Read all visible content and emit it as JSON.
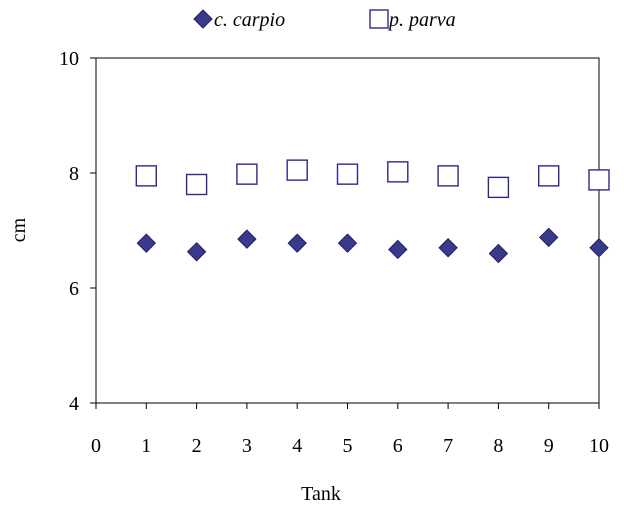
{
  "chart_data": {
    "type": "scatter",
    "title": "",
    "xlabel": "Tank",
    "ylabel": "cm",
    "xlim": [
      0,
      10
    ],
    "ylim": [
      4,
      10
    ],
    "x_ticks": [
      "0",
      "1",
      "2",
      "3",
      "4",
      "5",
      "6",
      "7",
      "8",
      "9",
      "10"
    ],
    "y_ticks": [
      "4",
      "6",
      "8",
      "10"
    ],
    "grid": false,
    "legend_position": "top",
    "series": [
      {
        "name": "c. carpio",
        "marker": "filled-diamond",
        "color": "#3a3a8c",
        "x": [
          1,
          2,
          3,
          4,
          5,
          6,
          7,
          8,
          9,
          10
        ],
        "y": [
          6.78,
          6.63,
          6.85,
          6.78,
          6.78,
          6.67,
          6.7,
          6.6,
          6.88,
          6.7
        ]
      },
      {
        "name": "p. parva",
        "marker": "open-square",
        "color": "#2a2a88",
        "x": [
          1,
          2,
          3,
          4,
          5,
          6,
          7,
          8,
          9,
          10
        ],
        "y": [
          7.95,
          7.8,
          7.98,
          8.05,
          7.98,
          8.02,
          7.95,
          7.75,
          7.95,
          7.88
        ]
      }
    ]
  }
}
